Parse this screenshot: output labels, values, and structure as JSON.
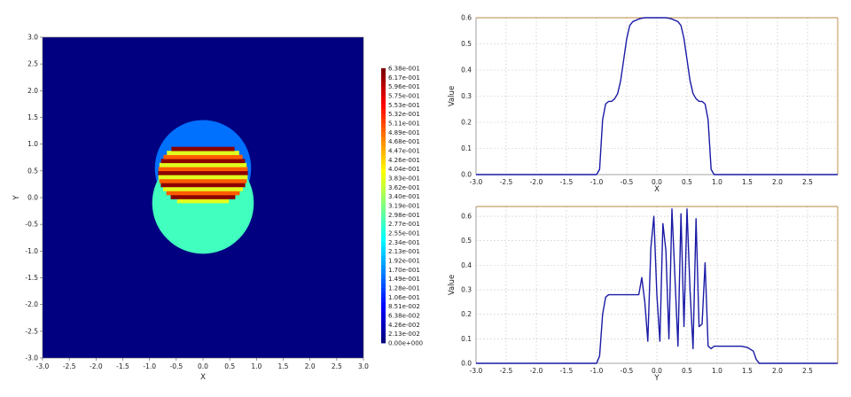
{
  "chart_data": [
    {
      "type": "heatmap",
      "title": "",
      "xlabel": "X",
      "ylabel": "Y",
      "xlim": [
        -3.0,
        3.0
      ],
      "ylim": [
        -3.0,
        3.0
      ],
      "x_ticks": [
        "-3.0",
        "-2.5",
        "-2.0",
        "-1.5",
        "-1.0",
        "-0.5",
        "0.0",
        "0.5",
        "1.0",
        "1.5",
        "2.0",
        "2.5",
        "3.0"
      ],
      "y_ticks": [
        "3.0",
        "2.5",
        "2.0",
        "1.5",
        "1.0",
        "0.5",
        "0.0",
        "-0.5",
        "-1.0",
        "-1.5",
        "-2.0",
        "-2.5",
        "-3.0"
      ],
      "colorbar_labels": [
        "6.38e-001",
        "6.17e-001",
        "5.96e-001",
        "5.75e-001",
        "5.53e-001",
        "5.32e-001",
        "5.11e-001",
        "4.89e-001",
        "4.68e-001",
        "4.47e-001",
        "4.26e-001",
        "4.04e-001",
        "3.83e-001",
        "3.62e-001",
        "3.40e-001",
        "3.19e-001",
        "2.98e-001",
        "2.77e-001",
        "2.55e-001",
        "2.34e-001",
        "2.13e-001",
        "1.92e-001",
        "1.70e-001",
        "1.49e-001",
        "1.28e-001",
        "1.06e-001",
        "8.51e-002",
        "6.38e-002",
        "4.26e-002",
        "2.13e-002",
        "0.00e+000"
      ],
      "value_range": [
        0.0,
        0.638
      ],
      "regions": [
        {
          "shape": "background",
          "value": 0.0
        },
        {
          "shape": "upper-circle",
          "center": [
            0.0,
            0.55
          ],
          "radius": 0.9,
          "value": 0.15
        },
        {
          "shape": "lower-circle",
          "center": [
            0.0,
            -0.1
          ],
          "radius": 0.95,
          "value": 0.28
        },
        {
          "shape": "stripes",
          "y_range": [
            -0.1,
            0.95
          ],
          "values": [
            0.38,
            0.63,
            0.5
          ]
        }
      ]
    },
    {
      "type": "line",
      "title": "",
      "xlabel": "X",
      "ylabel": "Value",
      "xlim": [
        -3.0,
        3.0
      ],
      "ylim": [
        0.0,
        0.6
      ],
      "x_ticks": [
        "-3.0",
        "-2.5",
        "-2.0",
        "-1.5",
        "-1.0",
        "-0.5",
        "0.0",
        "0.5",
        "1.0",
        "1.5",
        "2.0",
        "2.5"
      ],
      "y_ticks": [
        "0.0",
        "0.1",
        "0.2",
        "0.3",
        "0.4",
        "0.5",
        "0.6"
      ],
      "series": [
        {
          "name": "Value",
          "x": [
            -3.0,
            -1.0,
            -0.95,
            -0.9,
            -0.85,
            -0.8,
            -0.75,
            -0.7,
            -0.65,
            -0.6,
            -0.55,
            -0.5,
            -0.45,
            -0.4,
            -0.35,
            -0.3,
            -0.25,
            -0.2,
            -0.15,
            -0.1,
            0.0,
            0.1,
            0.15,
            0.2,
            0.25,
            0.3,
            0.35,
            0.4,
            0.45,
            0.5,
            0.55,
            0.6,
            0.65,
            0.7,
            0.75,
            0.8,
            0.85,
            0.9,
            0.95,
            1.0,
            3.0
          ],
          "y": [
            0.0,
            0.0,
            0.02,
            0.21,
            0.27,
            0.28,
            0.28,
            0.29,
            0.31,
            0.36,
            0.44,
            0.52,
            0.57,
            0.585,
            0.59,
            0.595,
            0.598,
            0.6,
            0.6,
            0.6,
            0.6,
            0.6,
            0.6,
            0.598,
            0.595,
            0.59,
            0.585,
            0.57,
            0.52,
            0.44,
            0.36,
            0.31,
            0.29,
            0.28,
            0.28,
            0.27,
            0.21,
            0.02,
            0.0,
            0.0,
            0.0
          ]
        }
      ]
    },
    {
      "type": "line",
      "title": "",
      "xlabel": "Y",
      "ylabel": "Value",
      "xlim": [
        -3.0,
        3.0
      ],
      "ylim": [
        0.0,
        0.64
      ],
      "x_ticks": [
        "-3.0",
        "-2.5",
        "-2.0",
        "-1.5",
        "-1.0",
        "-0.5",
        "0.0",
        "0.5",
        "1.0",
        "1.5",
        "2.0",
        "2.5"
      ],
      "y_ticks": [
        "0.0",
        "0.1",
        "0.2",
        "0.3",
        "0.4",
        "0.5",
        "0.6"
      ],
      "series": [
        {
          "name": "Value",
          "x": [
            -3.0,
            -1.0,
            -0.95,
            -0.9,
            -0.85,
            -0.8,
            -0.75,
            -0.7,
            -0.6,
            -0.5,
            -0.4,
            -0.3,
            -0.25,
            -0.2,
            -0.15,
            -0.1,
            -0.05,
            0.0,
            0.05,
            0.1,
            0.15,
            0.2,
            0.25,
            0.3,
            0.35,
            0.4,
            0.45,
            0.5,
            0.55,
            0.6,
            0.65,
            0.7,
            0.75,
            0.8,
            0.85,
            0.9,
            0.95,
            1.0,
            1.1,
            1.2,
            1.3,
            1.4,
            1.5,
            1.6,
            1.65,
            1.7,
            3.0
          ],
          "y": [
            0.0,
            0.0,
            0.03,
            0.2,
            0.27,
            0.28,
            0.28,
            0.28,
            0.28,
            0.28,
            0.28,
            0.28,
            0.35,
            0.25,
            0.09,
            0.47,
            0.6,
            0.28,
            0.09,
            0.57,
            0.46,
            0.1,
            0.63,
            0.35,
            0.07,
            0.61,
            0.15,
            0.63,
            0.3,
            0.06,
            0.59,
            0.15,
            0.16,
            0.41,
            0.07,
            0.06,
            0.07,
            0.07,
            0.07,
            0.07,
            0.07,
            0.07,
            0.065,
            0.05,
            0.015,
            0.0,
            0.0
          ]
        }
      ]
    }
  ]
}
